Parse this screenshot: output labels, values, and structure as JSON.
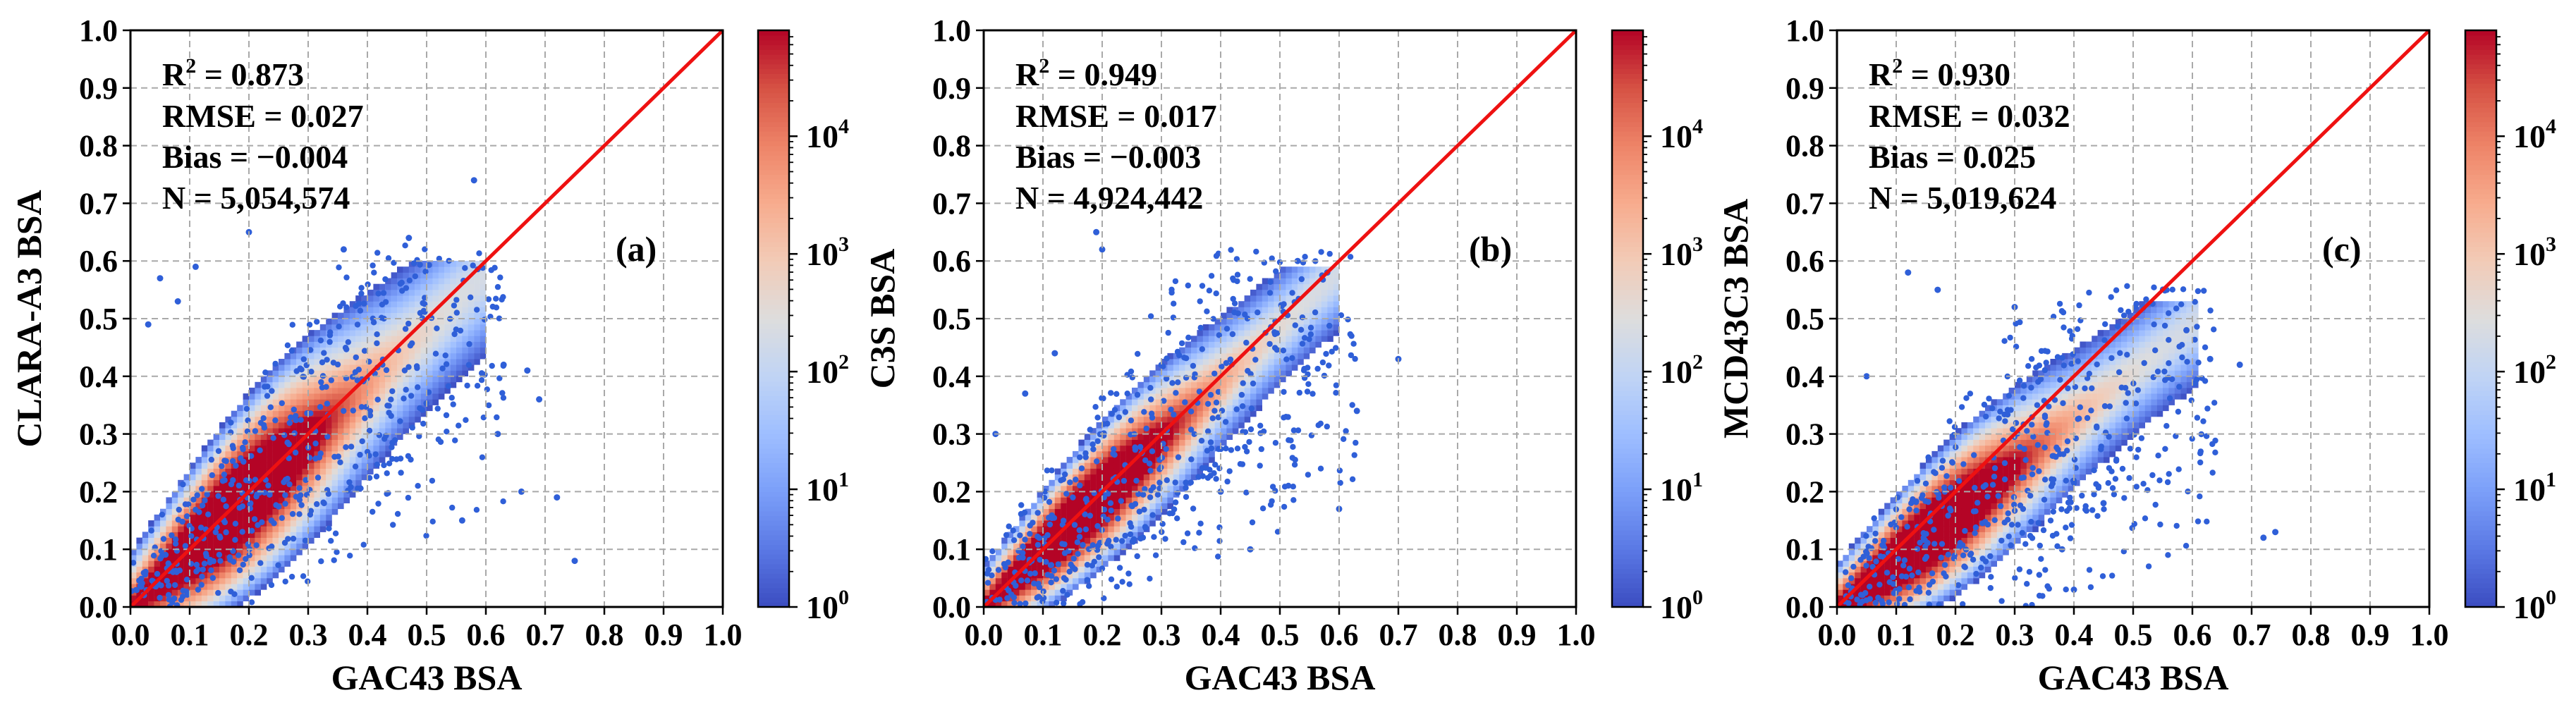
{
  "figure": {
    "colorbar": {
      "colors": [
        "#3b4cc0",
        "#5a78e4",
        "#7b9ff9",
        "#9ebeff",
        "#c0d4f5",
        "#dddddd",
        "#f2cbb7",
        "#f7ac8e",
        "#ee8468",
        "#d65244",
        "#b40426"
      ],
      "tick_labels": [
        "10",
        "10",
        "10",
        "10",
        "10"
      ],
      "tick_exponents": [
        "0",
        "1",
        "2",
        "3",
        "4"
      ],
      "log_min": 0,
      "log_max": 4.9
    },
    "one_to_one_color": "#ee1111",
    "point_color": "#2f5fd8"
  },
  "chart_data": [
    {
      "type": "scatter",
      "kind": "density-scatter (hexbin)",
      "panel": "(a)",
      "xlabel": "GAC43 BSA",
      "ylabel": "CLARA-A3 BSA",
      "xlim": [
        0.0,
        1.0
      ],
      "ylim": [
        0.0,
        1.0
      ],
      "x_ticks": [
        "0.0",
        "0.1",
        "0.2",
        "0.3",
        "0.4",
        "0.5",
        "0.6",
        "0.7",
        "0.8",
        "0.9",
        "1.0"
      ],
      "y_ticks": [
        "0.0",
        "0.1",
        "0.2",
        "0.3",
        "0.4",
        "0.5",
        "0.6",
        "0.7",
        "0.8",
        "0.9",
        "1.0"
      ],
      "grid": true,
      "stats": {
        "r2_label": "R",
        "r2_exp": "2",
        "r2_value": " = 0.873",
        "rmse": "RMSE = 0.027",
        "bias": "Bias = −0.004",
        "n": "N = 5,054,574"
      },
      "density": {
        "slope": 0.96,
        "offset": 0.0,
        "spread_low": 0.15,
        "spread_high": 0.16,
        "peak_x": 0.16,
        "x_max": 0.6,
        "y_max": 0.6
      },
      "outliers": [
        [
          0.58,
          0.74
        ],
        [
          0.47,
          0.64
        ],
        [
          0.2,
          0.65
        ],
        [
          0.63,
          0.42
        ],
        [
          0.67,
          0.41
        ],
        [
          0.69,
          0.36
        ],
        [
          0.66,
          0.2
        ],
        [
          0.72,
          0.19
        ],
        [
          0.75,
          0.08
        ],
        [
          0.62,
          0.3
        ],
        [
          0.56,
          0.15
        ],
        [
          0.05,
          0.57
        ],
        [
          0.11,
          0.59
        ],
        [
          0.03,
          0.49
        ],
        [
          0.36,
          0.62
        ],
        [
          0.08,
          0.53
        ]
      ]
    },
    {
      "type": "scatter",
      "kind": "density-scatter (hexbin)",
      "panel": "(b)",
      "xlabel": "GAC43 BSA",
      "ylabel": "C3S BSA",
      "xlim": [
        0.0,
        1.0
      ],
      "ylim": [
        0.0,
        1.0
      ],
      "x_ticks": [
        "0.0",
        "0.1",
        "0.2",
        "0.3",
        "0.4",
        "0.5",
        "0.6",
        "0.7",
        "0.8",
        "0.9",
        "1.0"
      ],
      "y_ticks": [
        "0.0",
        "0.1",
        "0.2",
        "0.3",
        "0.4",
        "0.5",
        "0.6",
        "0.7",
        "0.8",
        "0.9",
        "1.0"
      ],
      "grid": true,
      "stats": {
        "r2_label": "R",
        "r2_exp": "2",
        "r2_value": " = 0.949",
        "rmse": "RMSE = 0.017",
        "bias": "Bias = −0.003",
        "n": "N = 4,924,442"
      },
      "density": {
        "slope": 0.97,
        "offset": 0.0,
        "spread_low": 0.11,
        "spread_high": 0.12,
        "peak_x": 0.15,
        "x_max": 0.6,
        "y_max": 0.59
      },
      "outliers": [
        [
          0.19,
          0.65
        ],
        [
          0.2,
          0.62
        ],
        [
          0.7,
          0.43
        ],
        [
          0.63,
          0.34
        ],
        [
          0.53,
          0.6
        ],
        [
          0.6,
          0.17
        ],
        [
          0.45,
          0.1
        ],
        [
          0.4,
          0.2
        ],
        [
          0.07,
          0.37
        ],
        [
          0.12,
          0.44
        ],
        [
          0.02,
          0.3
        ],
        [
          0.58,
          0.58
        ]
      ]
    },
    {
      "type": "scatter",
      "kind": "density-scatter (hexbin)",
      "panel": "(c)",
      "xlabel": "GAC43 BSA",
      "ylabel": "MCD43C3 BSA",
      "xlim": [
        0.0,
        1.0
      ],
      "ylim": [
        0.0,
        1.0
      ],
      "x_ticks": [
        "0.0",
        "0.1",
        "0.2",
        "0.3",
        "0.4",
        "0.5",
        "0.6",
        "0.7",
        "0.8",
        "0.9",
        "1.0"
      ],
      "y_ticks": [
        "0.0",
        "0.1",
        "0.2",
        "0.3",
        "0.4",
        "0.5",
        "0.6",
        "0.7",
        "0.8",
        "0.9",
        "1.0"
      ],
      "grid": true,
      "stats": {
        "r2_label": "R",
        "r2_exp": "2",
        "r2_value": " = 0.930",
        "rmse": "RMSE = 0.032",
        "bias": "Bias = 0.025",
        "n": "N = 5,019,624"
      },
      "density": {
        "slope": 0.82,
        "offset": -0.005,
        "spread_low": 0.12,
        "spread_high": 0.13,
        "peak_x": 0.14,
        "x_max": 0.61,
        "y_max": 0.53
      },
      "outliers": [
        [
          0.12,
          0.58
        ],
        [
          0.17,
          0.55
        ],
        [
          0.72,
          0.12
        ],
        [
          0.74,
          0.13
        ],
        [
          0.63,
          0.43
        ],
        [
          0.68,
          0.42
        ],
        [
          0.59,
          0.48
        ],
        [
          0.4,
          0.03
        ],
        [
          0.38,
          0.1
        ],
        [
          0.45,
          0.18
        ],
        [
          0.05,
          0.4
        ],
        [
          0.3,
          0.52
        ]
      ]
    }
  ]
}
